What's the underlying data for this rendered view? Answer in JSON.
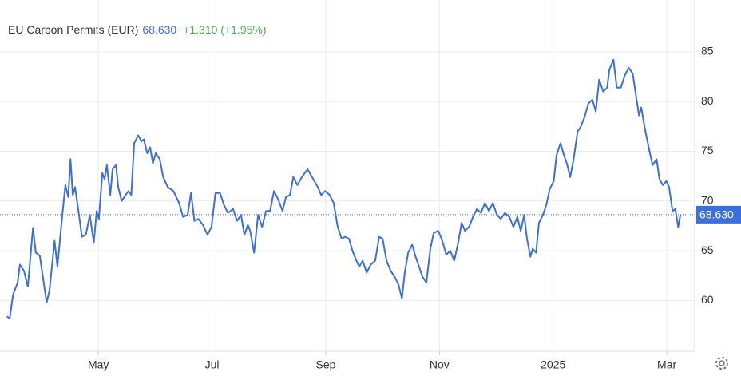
{
  "chart_data": {
    "type": "line",
    "title": "EU Carbon Permits (EUR)",
    "last_price": {
      "value": 68.63,
      "label": "68.630"
    },
    "change": "+1.310 (+1.95%)",
    "xlim": [
      3.27,
      15.49
    ],
    "xticks": [
      {
        "value": 5,
        "label": "May"
      },
      {
        "value": 7,
        "label": "Jul"
      },
      {
        "value": 9,
        "label": "Sep"
      },
      {
        "value": 11,
        "label": "Nov"
      },
      {
        "value": 13,
        "label": "2025"
      },
      {
        "value": 15,
        "label": "Mar"
      }
    ],
    "ylim": [
      54.9,
      90.2
    ],
    "yticks": [
      60,
      65,
      70,
      75,
      80,
      85
    ],
    "grid": true,
    "series": [
      {
        "color": "#3c6fd9",
        "x": [
          3.39,
          3.44,
          3.5,
          3.58,
          3.62,
          3.69,
          3.76,
          3.85,
          3.9,
          3.97,
          4.09,
          4.14,
          4.23,
          4.28,
          4.37,
          4.42,
          4.47,
          4.51,
          4.55,
          4.59,
          4.66,
          4.71,
          4.78,
          4.85,
          4.92,
          4.97,
          5.01,
          5.07,
          5.11,
          5.15,
          5.21,
          5.25,
          5.31,
          5.35,
          5.41,
          5.48,
          5.53,
          5.58,
          5.63,
          5.7,
          5.76,
          5.8,
          5.86,
          5.91,
          5.96,
          6.01,
          6.08,
          6.14,
          6.22,
          6.32,
          6.42,
          6.49,
          6.57,
          6.63,
          6.69,
          6.76,
          6.84,
          6.92,
          6.99,
          7.06,
          7.14,
          7.21,
          7.28,
          7.37,
          7.44,
          7.51,
          7.57,
          7.63,
          7.67,
          7.74,
          7.81,
          7.88,
          7.95,
          8.02,
          8.09,
          8.16,
          8.24,
          8.3,
          8.37,
          8.43,
          8.5,
          8.58,
          8.68,
          8.78,
          8.86,
          8.92,
          8.99,
          9.07,
          9.14,
          9.21,
          9.28,
          9.34,
          9.41,
          9.47,
          9.54,
          9.59,
          9.65,
          9.72,
          9.79,
          9.87,
          9.94,
          10.0,
          10.07,
          10.14,
          10.21,
          10.28,
          10.34,
          10.39,
          10.45,
          10.52,
          10.58,
          10.63,
          10.7,
          10.77,
          10.84,
          10.9,
          10.98,
          11.05,
          11.12,
          11.19,
          11.26,
          11.33,
          11.39,
          11.45,
          11.52,
          11.59,
          11.66,
          11.73,
          11.8,
          11.87,
          11.94,
          12.01,
          12.08,
          12.15,
          12.23,
          12.3,
          12.37,
          12.43,
          12.49,
          12.54,
          12.6,
          12.64,
          12.7,
          12.75,
          12.82,
          12.88,
          12.94,
          13.01,
          13.06,
          13.13,
          13.19,
          13.24,
          13.3,
          13.36,
          13.43,
          13.48,
          13.55,
          13.62,
          13.69,
          13.75,
          13.81,
          13.88,
          13.95,
          13.99,
          14.06,
          14.12,
          14.19,
          14.26,
          14.33,
          14.4,
          14.47,
          14.51,
          14.55,
          14.61,
          14.68,
          14.75,
          14.82,
          14.87,
          14.93,
          14.99,
          15.04,
          15.1,
          15.15,
          15.2,
          15.24
        ],
        "values": [
          58.4,
          58.2,
          60.6,
          61.8,
          63.6,
          63.0,
          61.4,
          67.3,
          64.8,
          64.5,
          59.8,
          61.0,
          66.0,
          63.4,
          68.8,
          71.6,
          70.4,
          74.2,
          70.6,
          71.4,
          68.6,
          66.4,
          66.6,
          68.6,
          65.8,
          69.0,
          68.2,
          72.8,
          72.2,
          73.6,
          70.6,
          73.2,
          73.6,
          71.4,
          70.0,
          70.6,
          71.0,
          70.6,
          75.8,
          76.6,
          76.0,
          76.2,
          74.8,
          75.4,
          73.8,
          74.8,
          74.2,
          72.4,
          71.4,
          71.0,
          69.8,
          68.4,
          68.6,
          70.8,
          68.0,
          68.2,
          67.6,
          66.6,
          67.4,
          70.8,
          70.8,
          69.6,
          68.8,
          69.2,
          68.0,
          68.6,
          66.6,
          67.6,
          67.0,
          64.8,
          68.6,
          67.4,
          69.0,
          69.0,
          71.0,
          70.2,
          69.0,
          70.4,
          70.6,
          72.4,
          71.6,
          72.4,
          73.2,
          72.2,
          71.4,
          70.6,
          71.0,
          70.6,
          69.8,
          67.4,
          66.2,
          66.4,
          66.2,
          65.0,
          64.0,
          63.4,
          64.0,
          62.8,
          63.6,
          64.0,
          66.4,
          66.2,
          64.0,
          63.0,
          62.4,
          61.6,
          60.2,
          62.8,
          64.8,
          65.6,
          64.4,
          63.6,
          62.4,
          61.8,
          65.2,
          66.8,
          67.0,
          66.0,
          64.6,
          65.0,
          64.0,
          65.8,
          67.8,
          67.0,
          67.4,
          68.4,
          69.2,
          68.8,
          69.8,
          69.0,
          69.8,
          68.6,
          68.2,
          68.8,
          68.4,
          67.4,
          68.4,
          67.0,
          68.6,
          66.2,
          64.4,
          65.2,
          64.8,
          67.8,
          68.6,
          69.6,
          71.2,
          72.0,
          74.6,
          75.8,
          74.6,
          73.8,
          72.4,
          74.2,
          77.0,
          77.4,
          78.4,
          79.8,
          80.2,
          79.0,
          82.2,
          81.0,
          81.4,
          83.2,
          84.2,
          81.4,
          81.4,
          82.6,
          83.4,
          82.8,
          80.1,
          78.6,
          79.4,
          77.4,
          75.4,
          73.6,
          74.2,
          72.2,
          71.6,
          72.0,
          71.4,
          69.0,
          69.2,
          67.4,
          68.63
        ]
      }
    ]
  }
}
